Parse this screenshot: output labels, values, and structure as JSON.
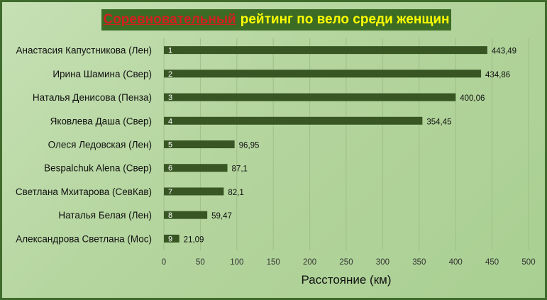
{
  "chart_data": {
    "type": "bar",
    "orientation": "horizontal",
    "title_part1": "Соревновательный",
    "title_part2": "рейтинг  по вело среди женщин",
    "xlabel": "Расстояние (км)",
    "ylabel": "",
    "xlim": [
      0,
      500
    ],
    "xticks": [
      0,
      50,
      100,
      150,
      200,
      250,
      300,
      350,
      400,
      450,
      500
    ],
    "grid": true,
    "categories": [
      "Анастасия Капустникова (Лен)",
      "Ирина Шамина (Свер)",
      "Наталья Денисова (Пенза)",
      "Яковлева Даша (Свер)",
      "Олеся Ледовская (Лен)",
      "Bespalchuk Alena (Свер)",
      "Светлана Мхитарова (СевКав)",
      "Наталья Белая (Лен)",
      "Александрова Светлана (Мос)"
    ],
    "ranks": [
      "1",
      "2",
      "3",
      "4",
      "5",
      "6",
      "7",
      "8",
      "9"
    ],
    "values": [
      443.49,
      434.86,
      400.06,
      354.45,
      96.95,
      87.1,
      82.1,
      59.47,
      21.09
    ],
    "value_labels": [
      "443,49",
      "434,86",
      "400,06",
      "354,45",
      "96,95",
      "87,1",
      "82,1",
      "59,47",
      "21,09"
    ],
    "colors": {
      "bar": "#375623",
      "title_background": "#3b6b25",
      "title_red": "#d42020",
      "title_yellow": "#ffff00"
    }
  }
}
